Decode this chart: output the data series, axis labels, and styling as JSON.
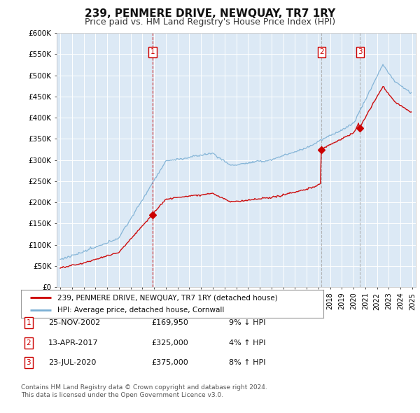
{
  "title": "239, PENMERE DRIVE, NEWQUAY, TR7 1RY",
  "subtitle": "Price paid vs. HM Land Registry's House Price Index (HPI)",
  "ylim": [
    0,
    600000
  ],
  "yticks": [
    0,
    50000,
    100000,
    150000,
    200000,
    250000,
    300000,
    350000,
    400000,
    450000,
    500000,
    550000,
    600000
  ],
  "ytick_labels": [
    "£0",
    "£50K",
    "£100K",
    "£150K",
    "£200K",
    "£250K",
    "£300K",
    "£350K",
    "£400K",
    "£450K",
    "£500K",
    "£550K",
    "£600K"
  ],
  "sale_dates_num": [
    2002.896,
    2017.277,
    2020.554
  ],
  "sale_prices": [
    169950,
    325000,
    375000
  ],
  "sale_labels": [
    "1",
    "2",
    "3"
  ],
  "sale_vline_styles": [
    "red_dashed",
    "grey_dashed",
    "grey_dashed"
  ],
  "sale_info": [
    [
      "1",
      "25-NOV-2002",
      "£169,950",
      "9% ↓ HPI"
    ],
    [
      "2",
      "13-APR-2017",
      "£325,000",
      "4% ↑ HPI"
    ],
    [
      "3",
      "23-JUL-2020",
      "£375,000",
      "8% ↑ HPI"
    ]
  ],
  "legend_property": "239, PENMERE DRIVE, NEWQUAY, TR7 1RY (detached house)",
  "legend_hpi": "HPI: Average price, detached house, Cornwall",
  "footnote1": "Contains HM Land Registry data © Crown copyright and database right 2024.",
  "footnote2": "This data is licensed under the Open Government Licence v3.0.",
  "line_color_property": "#cc0000",
  "line_color_hpi": "#7bafd4",
  "chart_bg_color": "#dce9f5",
  "background_color": "#ffffff",
  "grid_color": "#ffffff",
  "title_fontsize": 11,
  "subtitle_fontsize": 9
}
